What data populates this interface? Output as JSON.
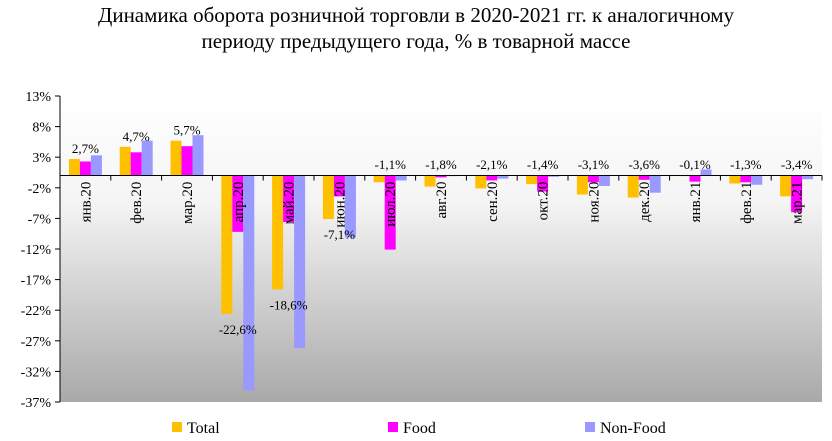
{
  "chart_data": {
    "type": "bar",
    "title_line1": "Динамика оборота розничной торговли в 2020-2021 гг. к аналогичному",
    "title_line2": "периоду предыдущего года, % в товарной массе",
    "categories": [
      "янв.20",
      "фев.20",
      "мар.20",
      "апр.20",
      "май.20",
      "июн.20",
      "июл.20",
      "авг.20",
      "сен.20",
      "окт.20",
      "ноя.20",
      "дек.20",
      "янв.21",
      "фев.21",
      "мар.21"
    ],
    "series": [
      {
        "name": "Total",
        "color": "#FFC000",
        "values": [
          2.7,
          4.7,
          5.7,
          -22.6,
          -18.6,
          -7.1,
          -1.1,
          -1.8,
          -2.1,
          -1.4,
          -3.1,
          -3.6,
          -0.1,
          -1.3,
          -3.4
        ]
      },
      {
        "name": "Food",
        "color": "#FF00FF",
        "values": [
          2.3,
          3.8,
          4.8,
          -9.2,
          -7.6,
          -3.4,
          -12.1,
          -0.3,
          -0.8,
          -2.6,
          -1.1,
          -0.7,
          -1.0,
          -1.1,
          -6.0
        ]
      },
      {
        "name": "Non-Food",
        "color": "#9999FF",
        "values": [
          3.3,
          5.7,
          6.6,
          -35.1,
          -28.2,
          -10.1,
          -0.8,
          -0.1,
          -0.5,
          -0.2,
          -1.7,
          -2.8,
          1.0,
          -1.5,
          -0.6
        ]
      }
    ],
    "data_labels": [
      "2,7%",
      "4,7%",
      "5,7%",
      "-22,6%",
      "-18,6%",
      "-7,1%",
      "-1,1%",
      "-1,8%",
      "-2,1%",
      "-1,4%",
      "-3,1%",
      "-3,6%",
      "-0,1%",
      "-1,3%",
      "-3,4%"
    ],
    "yticks": [
      13,
      8,
      3,
      -2,
      -7,
      -12,
      -17,
      -22,
      -27,
      -32,
      -37
    ],
    "ytick_labels": [
      "13%",
      "8%",
      "3%",
      "-2%",
      "-7%",
      "-12%",
      "-17%",
      "-22%",
      "-27%",
      "-32%",
      "-37%"
    ],
    "ylim": [
      -37,
      13
    ],
    "legend_position": "bottom",
    "plot_background": "gradient white to gray"
  }
}
